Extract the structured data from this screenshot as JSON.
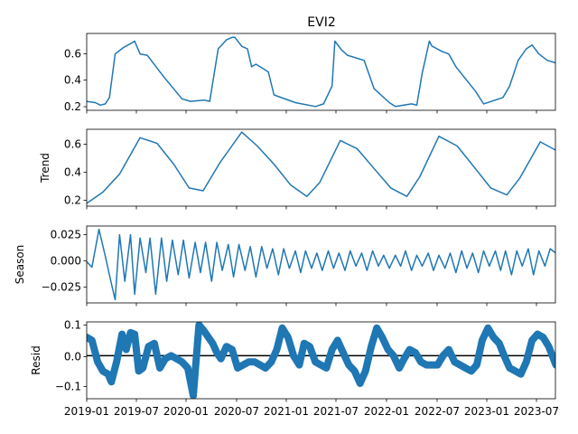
{
  "chart_data": {
    "type": "line",
    "title": "EVI2",
    "x_ticks": [
      "2019-01",
      "2019-07",
      "2020-01",
      "2020-07",
      "2021-01",
      "2021-07",
      "2022-01",
      "2022-07",
      "2023-01",
      "2023-07"
    ],
    "colors": {
      "line": "#1f77b4",
      "zero_line": "#000000"
    },
    "panels": [
      {
        "name": "observed",
        "ylabel": "",
        "ylim": [
          0.16,
          0.76
        ],
        "y_ticks": [
          "0.2",
          "0.4",
          "0.6"
        ],
        "series": {
          "x": [
            "2019-01-01",
            "2019-02-01",
            "2019-02-20",
            "2019-03-10",
            "2019-03-25",
            "2019-04-15",
            "2019-05-15",
            "2019-06-10",
            "2019-06-25",
            "2019-07-15",
            "2019-08-10",
            "2019-10-10",
            "2019-12-15",
            "2020-01-15",
            "2020-03-05",
            "2020-03-25",
            "2020-04-25",
            "2020-05-25",
            "2020-06-15",
            "2020-06-25",
            "2020-07-20",
            "2020-08-10",
            "2020-08-25",
            "2020-09-10",
            "2020-10-25",
            "2020-11-15",
            "2021-02-01",
            "2021-04-15",
            "2021-05-15",
            "2021-06-15",
            "2021-06-25",
            "2021-07-20",
            "2021-08-10",
            "2021-10-10",
            "2021-11-15",
            "2022-01-10",
            "2022-02-01",
            "2022-04-01",
            "2022-04-20",
            "2022-05-10",
            "2022-06-05",
            "2022-06-15",
            "2022-06-25",
            "2022-07-20",
            "2022-08-15",
            "2022-09-10",
            "2022-11-20",
            "2022-12-20",
            "2023-03-01",
            "2023-03-25",
            "2023-04-25",
            "2023-05-25",
            "2023-06-15",
            "2023-07-10",
            "2023-08-10",
            "2023-09-10"
          ],
          "y": [
            0.23,
            0.22,
            0.2,
            0.21,
            0.26,
            0.6,
            0.65,
            0.68,
            0.7,
            0.6,
            0.59,
            0.42,
            0.25,
            0.23,
            0.24,
            0.23,
            0.64,
            0.71,
            0.73,
            0.73,
            0.66,
            0.64,
            0.5,
            0.52,
            0.46,
            0.28,
            0.22,
            0.19,
            0.21,
            0.35,
            0.7,
            0.63,
            0.59,
            0.55,
            0.33,
            0.22,
            0.19,
            0.21,
            0.2,
            0.45,
            0.7,
            0.66,
            0.65,
            0.62,
            0.6,
            0.5,
            0.31,
            0.21,
            0.26,
            0.35,
            0.55,
            0.64,
            0.67,
            0.6,
            0.55,
            0.53
          ]
        }
      },
      {
        "name": "trend",
        "ylabel": "Trend",
        "ylim": [
          0.15,
          0.7
        ],
        "y_ticks": [
          "0.2",
          "0.4",
          "0.6"
        ],
        "series": {
          "x": [
            "2019-01-01",
            "2019-03-01",
            "2019-05-01",
            "2019-07-15",
            "2019-09-15",
            "2019-11-15",
            "2020-01-10",
            "2020-03-01",
            "2020-05-01",
            "2020-07-20",
            "2020-09-15",
            "2020-11-15",
            "2021-01-15",
            "2021-03-15",
            "2021-05-01",
            "2021-07-15",
            "2021-09-15",
            "2021-11-15",
            "2022-01-15",
            "2022-03-15",
            "2022-05-01",
            "2022-07-10",
            "2022-09-15",
            "2022-11-15",
            "2023-01-15",
            "2023-03-15",
            "2023-05-01",
            "2023-07-15",
            "2023-09-10"
          ],
          "y": [
            0.17,
            0.25,
            0.38,
            0.64,
            0.6,
            0.45,
            0.28,
            0.26,
            0.46,
            0.68,
            0.58,
            0.45,
            0.3,
            0.22,
            0.32,
            0.62,
            0.56,
            0.42,
            0.28,
            0.22,
            0.36,
            0.65,
            0.58,
            0.43,
            0.28,
            0.23,
            0.35,
            0.61,
            0.55
          ]
        }
      },
      {
        "name": "season",
        "ylabel": "Season",
        "ylim": [
          -0.038,
          0.033
        ],
        "y_ticks": [
          "0.025",
          "0.000",
          "−0.025"
        ],
        "series": {
          "x": [
            "2019-01-01",
            "2019-01-20",
            "2019-02-15",
            "2019-03-10",
            "2019-04-01",
            "2019-04-15",
            "2019-05-01",
            "2019-05-20",
            "2019-06-10",
            "2019-06-25",
            "2019-07-15",
            "2019-08-05",
            "2019-08-20",
            "2019-09-10",
            "2019-10-01",
            "2019-10-20",
            "2019-11-10",
            "2019-12-01",
            "2019-12-20",
            "2020-01-10",
            "2020-02-01",
            "2020-02-20",
            "2020-03-10",
            "2020-04-01",
            "2020-04-20",
            "2020-05-10",
            "2020-06-01",
            "2020-06-20",
            "2020-07-10",
            "2020-08-01",
            "2020-08-20",
            "2020-09-10",
            "2020-10-01",
            "2020-10-20",
            "2020-11-10",
            "2020-12-01",
            "2020-12-20",
            "2021-01-10",
            "2021-02-01",
            "2021-02-20",
            "2021-03-10",
            "2021-04-01",
            "2021-04-20",
            "2021-05-10",
            "2021-06-01",
            "2021-06-20",
            "2021-07-10",
            "2021-08-01",
            "2021-08-20",
            "2021-09-10",
            "2021-10-01",
            "2021-10-20",
            "2021-11-10",
            "2021-12-01",
            "2021-12-20",
            "2022-01-10",
            "2022-02-01",
            "2022-02-20",
            "2022-03-10",
            "2022-04-01",
            "2022-04-20",
            "2022-05-10",
            "2022-06-01",
            "2022-06-20",
            "2022-07-10",
            "2022-08-01",
            "2022-08-20",
            "2022-09-10",
            "2022-10-01",
            "2022-10-20",
            "2022-11-10",
            "2022-12-01",
            "2022-12-20",
            "2023-01-10",
            "2023-02-01",
            "2023-02-20",
            "2023-03-10",
            "2023-04-01",
            "2023-04-20",
            "2023-05-10",
            "2023-06-01",
            "2023-06-20",
            "2023-07-10",
            "2023-08-01",
            "2023-08-20",
            "2023-09-10"
          ],
          "y": [
            0.0,
            -0.005,
            0.03,
            0.005,
            -0.02,
            -0.035,
            0.025,
            -0.018,
            0.025,
            -0.03,
            0.022,
            -0.01,
            0.022,
            -0.03,
            0.022,
            -0.018,
            0.02,
            -0.012,
            0.02,
            -0.015,
            0.018,
            -0.01,
            0.018,
            -0.018,
            0.018,
            -0.008,
            0.016,
            -0.014,
            0.016,
            -0.008,
            0.014,
            -0.014,
            0.014,
            -0.006,
            0.012,
            -0.012,
            0.012,
            -0.006,
            0.01,
            -0.01,
            0.01,
            -0.006,
            0.008,
            -0.008,
            0.01,
            -0.006,
            0.008,
            -0.008,
            0.01,
            -0.004,
            0.008,
            -0.008,
            0.01,
            -0.004,
            0.006,
            -0.006,
            0.006,
            -0.004,
            0.01,
            -0.008,
            0.006,
            -0.004,
            0.008,
            -0.008,
            0.006,
            -0.006,
            0.008,
            -0.01,
            0.01,
            -0.006,
            0.008,
            -0.01,
            0.01,
            -0.004,
            0.01,
            -0.008,
            0.01,
            -0.012,
            0.01,
            -0.004,
            0.012,
            -0.012,
            0.01,
            -0.004,
            0.012,
            0.008
          ]
        }
      },
      {
        "name": "resid",
        "ylabel": "Resid",
        "ylim": [
          -0.14,
          0.11
        ],
        "y_ticks": [
          "0.1",
          "0.0",
          "−0.1"
        ],
        "zero_line": true,
        "series": {
          "x": [
            "2019-01-01",
            "2019-01-20",
            "2019-02-10",
            "2019-03-01",
            "2019-03-20",
            "2019-04-01",
            "2019-04-20",
            "2019-05-10",
            "2019-05-25",
            "2019-06-10",
            "2019-06-25",
            "2019-07-10",
            "2019-07-25",
            "2019-08-15",
            "2019-09-05",
            "2019-09-25",
            "2019-10-15",
            "2019-11-05",
            "2019-11-25",
            "2019-12-15",
            "2020-01-05",
            "2020-01-25",
            "2020-02-15",
            "2020-03-05",
            "2020-03-20",
            "2020-04-05",
            "2020-04-20",
            "2020-05-05",
            "2020-05-25",
            "2020-06-15",
            "2020-07-05",
            "2020-07-25",
            "2020-08-15",
            "2020-09-05",
            "2020-09-25",
            "2020-10-15",
            "2020-11-05",
            "2020-11-25",
            "2020-12-15",
            "2021-01-05",
            "2021-01-25",
            "2021-02-15",
            "2021-03-05",
            "2021-03-25",
            "2021-04-15",
            "2021-05-05",
            "2021-05-25",
            "2021-06-15",
            "2021-07-05",
            "2021-07-25",
            "2021-08-15",
            "2021-09-05",
            "2021-09-25",
            "2021-10-15",
            "2021-11-05",
            "2021-11-25",
            "2021-12-15",
            "2022-01-05",
            "2022-01-25",
            "2022-02-15",
            "2022-03-05",
            "2022-03-25",
            "2022-04-15",
            "2022-05-05",
            "2022-05-25",
            "2022-06-15",
            "2022-07-05",
            "2022-07-25",
            "2022-08-15",
            "2022-09-05",
            "2022-09-25",
            "2022-10-15",
            "2022-11-05",
            "2022-11-25",
            "2022-12-15",
            "2023-01-05",
            "2023-01-25",
            "2023-02-15",
            "2023-03-05",
            "2023-03-25",
            "2023-04-15",
            "2023-05-05",
            "2023-05-25",
            "2023-06-15",
            "2023-07-05",
            "2023-07-25",
            "2023-08-15",
            "2023-09-10"
          ],
          "y": [
            0.06,
            0.05,
            -0.02,
            -0.05,
            -0.06,
            -0.085,
            -0.02,
            0.07,
            0.02,
            0.075,
            0.07,
            -0.05,
            -0.04,
            0.03,
            0.04,
            -0.04,
            -0.01,
            0.0,
            -0.01,
            -0.02,
            -0.04,
            -0.13,
            0.1,
            0.08,
            0.06,
            0.04,
            0.01,
            -0.01,
            0.03,
            0.02,
            -0.04,
            -0.03,
            -0.02,
            -0.02,
            -0.03,
            -0.04,
            -0.02,
            0.02,
            0.09,
            0.06,
            0.0,
            -0.03,
            0.04,
            0.03,
            -0.02,
            -0.03,
            -0.04,
            0.02,
            0.05,
            0.01,
            -0.03,
            -0.05,
            -0.09,
            -0.05,
            0.03,
            0.09,
            0.06,
            0.02,
            0.0,
            -0.04,
            -0.01,
            0.02,
            0.01,
            -0.02,
            -0.03,
            -0.03,
            -0.03,
            0.0,
            0.02,
            -0.02,
            -0.03,
            -0.04,
            -0.05,
            -0.03,
            0.05,
            0.09,
            0.06,
            0.04,
            0.0,
            -0.04,
            -0.05,
            -0.06,
            -0.02,
            0.05,
            0.07,
            0.06,
            0.03,
            -0.03
          ]
        }
      }
    ]
  }
}
